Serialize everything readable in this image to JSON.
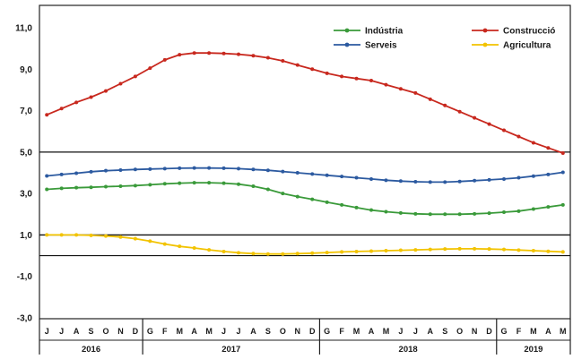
{
  "chart_data": {
    "type": "line",
    "y_ticks": [
      "11,0",
      "9,0",
      "7,0",
      "5,0",
      "3,0",
      "1,0",
      "-1,0",
      "-3,0"
    ],
    "ylim": [
      -3,
      11
    ],
    "grid": "horizontal lines at 5,0 and 1,0; zero line",
    "legend_position": "top-right",
    "x_months": [
      "J",
      "J",
      "A",
      "S",
      "O",
      "N",
      "D",
      "G",
      "F",
      "M",
      "A",
      "M",
      "J",
      "J",
      "A",
      "S",
      "O",
      "N",
      "D",
      "G",
      "F",
      "M",
      "A",
      "M",
      "J",
      "J",
      "A",
      "S",
      "O",
      "N",
      "D",
      "G",
      "F",
      "M",
      "A",
      "M"
    ],
    "years": [
      {
        "label": "2016",
        "start": 0,
        "count": 7
      },
      {
        "label": "2017",
        "start": 7,
        "count": 12
      },
      {
        "label": "2018",
        "start": 19,
        "count": 12
      },
      {
        "label": "2019",
        "start": 31,
        "count": 5
      }
    ],
    "series": [
      {
        "name": "Indústria",
        "color": "#3a9a3a",
        "values": [
          3.2,
          3.25,
          3.28,
          3.3,
          3.33,
          3.35,
          3.38,
          3.42,
          3.47,
          3.5,
          3.52,
          3.52,
          3.5,
          3.45,
          3.35,
          3.2,
          3.0,
          2.85,
          2.72,
          2.58,
          2.45,
          2.32,
          2.2,
          2.12,
          2.06,
          2.02,
          2.0,
          2.0,
          2.0,
          2.02,
          2.05,
          2.1,
          2.15,
          2.25,
          2.35,
          2.45
        ]
      },
      {
        "name": "Construcció",
        "color": "#c8281e",
        "values": [
          6.8,
          7.1,
          7.4,
          7.65,
          7.95,
          8.3,
          8.65,
          9.05,
          9.45,
          9.7,
          9.78,
          9.78,
          9.76,
          9.72,
          9.65,
          9.55,
          9.4,
          9.2,
          9.0,
          8.8,
          8.65,
          8.55,
          8.45,
          8.25,
          8.05,
          7.85,
          7.55,
          7.25,
          6.95,
          6.65,
          6.35,
          6.05,
          5.75,
          5.45,
          5.2,
          4.95
        ]
      },
      {
        "name": "Serveis",
        "color": "#2c5aa0",
        "values": [
          3.85,
          3.92,
          3.98,
          4.05,
          4.1,
          4.13,
          4.16,
          4.18,
          4.2,
          4.22,
          4.23,
          4.23,
          4.22,
          4.2,
          4.16,
          4.12,
          4.06,
          4.0,
          3.94,
          3.88,
          3.82,
          3.76,
          3.7,
          3.64,
          3.6,
          3.57,
          3.55,
          3.55,
          3.58,
          3.62,
          3.66,
          3.7,
          3.76,
          3.84,
          3.92,
          4.02
        ]
      },
      {
        "name": "Agricultura",
        "color": "#f2c300",
        "values": [
          1.0,
          1.0,
          1.0,
          0.98,
          0.95,
          0.9,
          0.82,
          0.7,
          0.56,
          0.45,
          0.37,
          0.28,
          0.2,
          0.14,
          0.1,
          0.08,
          0.08,
          0.1,
          0.12,
          0.15,
          0.18,
          0.2,
          0.22,
          0.24,
          0.26,
          0.28,
          0.3,
          0.32,
          0.33,
          0.33,
          0.32,
          0.3,
          0.27,
          0.24,
          0.21,
          0.18
        ]
      }
    ]
  }
}
